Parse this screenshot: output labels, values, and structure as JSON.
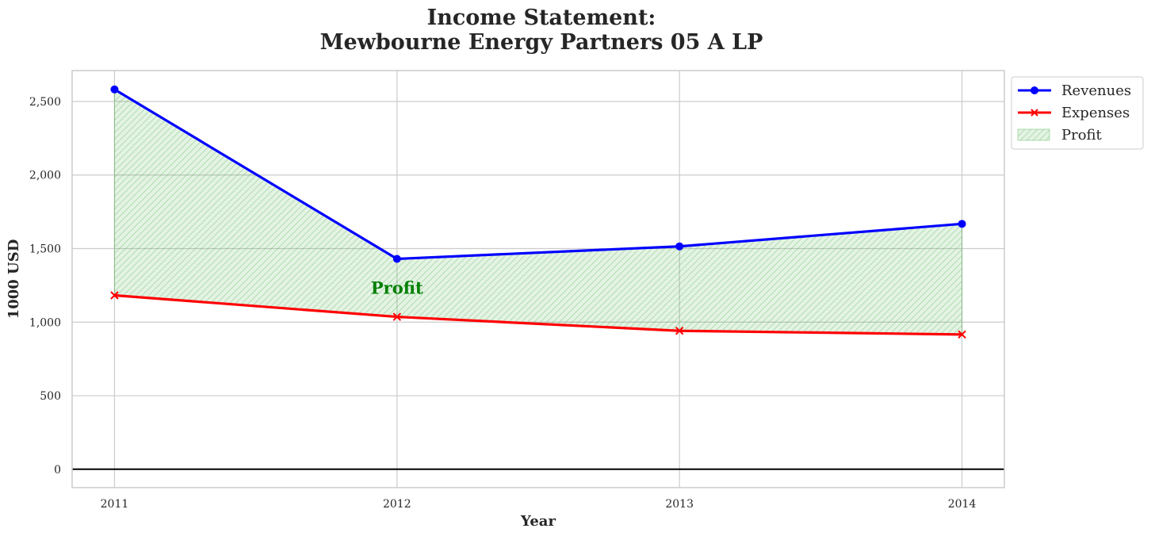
{
  "chart_data": {
    "type": "line",
    "title": "Income Statement:",
    "subtitle": "Mewbourne Energy Partners 05 A LP",
    "xlabel": "Year",
    "ylabel": "1000 USD",
    "categories": [
      "2011",
      "2012",
      "2013",
      "2014"
    ],
    "y_ticks": [
      {
        "value": 0,
        "label": "0"
      },
      {
        "value": 500,
        "label": "500"
      },
      {
        "value": 1000,
        "label": "1,000"
      },
      {
        "value": 1500,
        "label": "1,500"
      },
      {
        "value": 2000,
        "label": "2,000"
      },
      {
        "value": 2500,
        "label": "2,500"
      }
    ],
    "ylim": [
      -125,
      2710
    ],
    "xlim": [
      -0.15,
      3.15
    ],
    "grid": true,
    "zero_line": true,
    "series": [
      {
        "name": "Revenues",
        "color": "#0000ff",
        "marker": "circle",
        "values": [
          2582,
          1430,
          1515,
          1668
        ]
      },
      {
        "name": "Expenses",
        "color": "#ff0000",
        "marker": "x",
        "values": [
          1182,
          1036,
          941,
          916
        ]
      }
    ],
    "fill": {
      "name": "Profit",
      "between": [
        "Revenues",
        "Expenses"
      ],
      "color": "#2ca02c",
      "hatch": "////"
    },
    "annotation": {
      "text": "Profit",
      "x": 1,
      "y": 1230,
      "color": "#008000"
    },
    "legend": {
      "placement": "outside-top-right",
      "entries": [
        "Revenues",
        "Expenses",
        "Profit"
      ]
    }
  }
}
